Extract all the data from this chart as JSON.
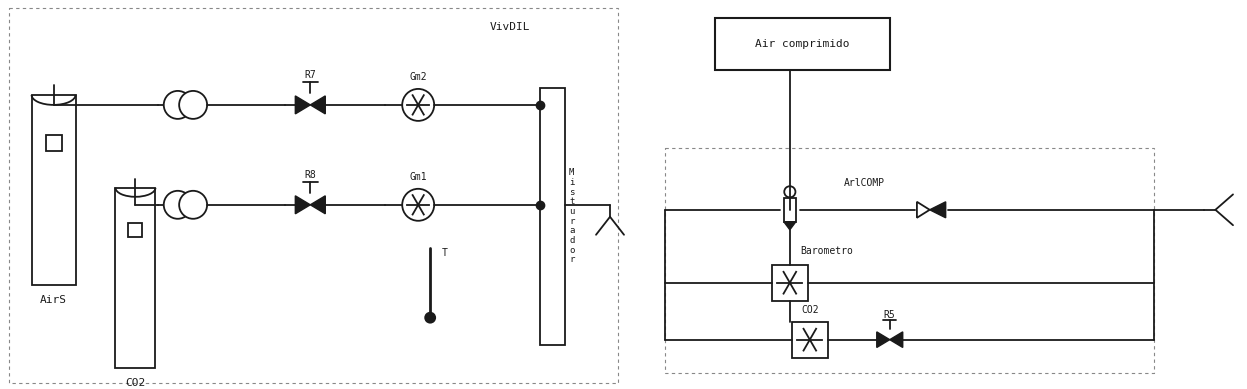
{
  "bg_color": "#ffffff",
  "line_color": "#1a1a1a",
  "figsize": [
    12.47,
    3.89
  ],
  "dpi": 100,
  "labels": {
    "AirS": "AirS",
    "CO2_left": "CO2",
    "R7": "R7",
    "R8": "R8",
    "Gm2": "Gm2",
    "Gm1": "Gm1",
    "VivDIL": "VivDIL",
    "Misturador": "M\ni\ns\nt\nu\nr\na\nd\no\nr",
    "T": "T",
    "Air_comprimido": "Air comprimido",
    "ArlCOMP": "ArlCOMP",
    "Barometro": "Barometro",
    "CO2_right": "CO2",
    "R5": "R5"
  }
}
